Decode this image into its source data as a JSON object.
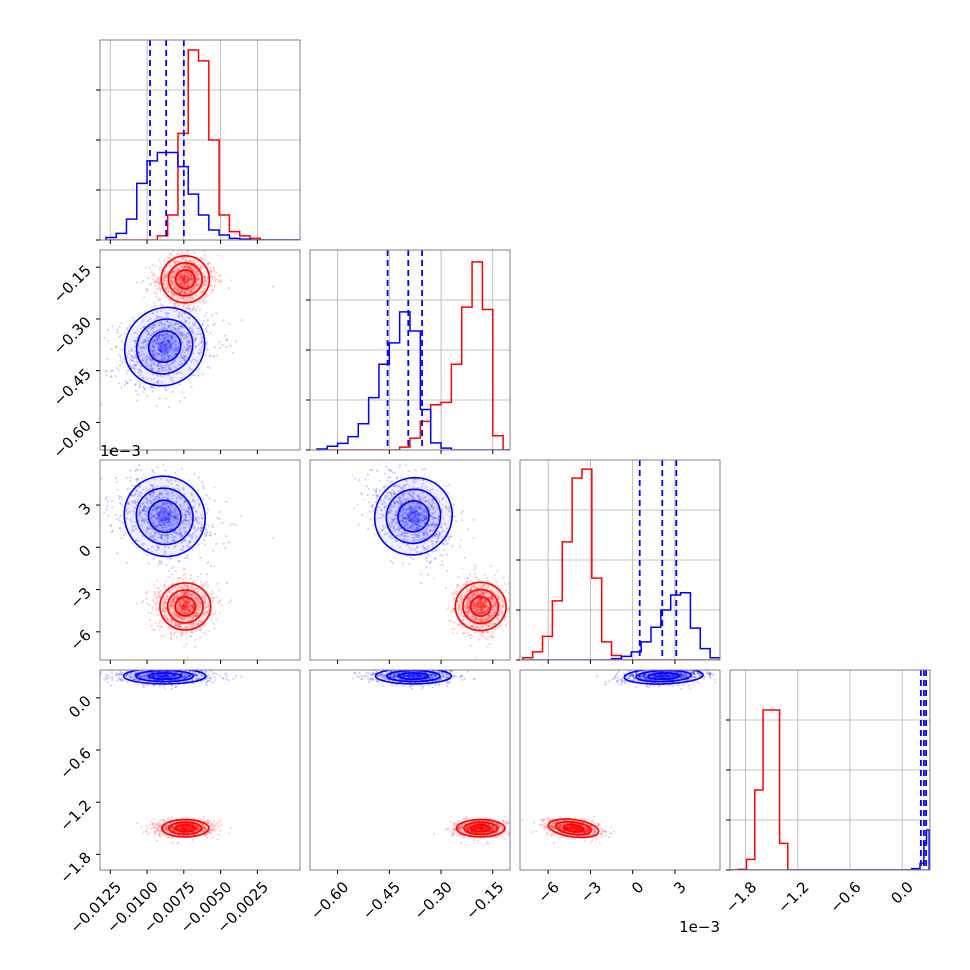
{
  "chart_data": {
    "type": "corner",
    "colors": {
      "blue": "#0000ff",
      "red": "#ff0000",
      "grid": "#b0b0b0",
      "frame": "#808080"
    },
    "grid": true,
    "parameters": [
      {
        "range": [
          -0.0132,
          0.0004
        ],
        "ticks": [
          -0.0125,
          -0.01,
          -0.0075,
          -0.005,
          -0.0025
        ],
        "tick_labels": [
          "−0.0125",
          "−0.0100",
          "−0.0075",
          "−0.0050",
          "−0.0025"
        ],
        "offset": ""
      },
      {
        "range": [
          -0.68,
          -0.1
        ],
        "ticks": [
          -0.6,
          -0.45,
          -0.3,
          -0.15
        ],
        "tick_labels": [
          "−0.60",
          "−0.45",
          "−0.30",
          "−0.15"
        ],
        "offset": ""
      },
      {
        "range": [
          -0.008,
          0.0062
        ],
        "ticks": [
          -0.006,
          -0.003,
          0,
          0.003
        ],
        "tick_labels": [
          "−6",
          "−3",
          "0",
          "3"
        ],
        "offset": "1e−3"
      },
      {
        "range": [
          -1.98,
          0.32
        ],
        "ticks": [
          -1.8,
          -1.2,
          -0.6,
          0.0
        ],
        "tick_labels": [
          "−1.8",
          "−1.2",
          "−0.6",
          "0.0"
        ],
        "offset": ""
      }
    ],
    "histograms": [
      {
        "edges": [
          -0.0128,
          -0.0121,
          -0.0114,
          -0.0107,
          -0.01,
          -0.0093,
          -0.0086,
          -0.0079,
          -0.0072,
          -0.0065,
          -0.0058,
          -0.0051,
          -0.0044,
          -0.0037,
          -0.003,
          -0.0023,
          -0.0016,
          -0.0009,
          -0.0002,
          0.0004
        ],
        "blue": [
          3,
          8,
          25,
          68,
          95,
          105,
          105,
          88,
          55,
          30,
          12,
          6,
          2,
          1,
          0,
          0,
          0,
          0,
          0
        ],
        "red": [
          0,
          0,
          0,
          0,
          0,
          5,
          30,
          128,
          228,
          215,
          120,
          30,
          10,
          5,
          2,
          0,
          0,
          0,
          0
        ],
        "ylim": [
          0,
          240
        ],
        "quantiles_blue": [
          -0.0098,
          -0.0087,
          -0.0075
        ]
      },
      {
        "edges": [
          -0.66,
          -0.63,
          -0.6,
          -0.57,
          -0.54,
          -0.51,
          -0.48,
          -0.45,
          -0.42,
          -0.39,
          -0.36,
          -0.33,
          -0.3,
          -0.27,
          -0.24,
          -0.21,
          -0.18,
          -0.15,
          -0.12,
          -0.1
        ],
        "blue": [
          2,
          8,
          14,
          28,
          55,
          110,
          180,
          225,
          290,
          250,
          85,
          15,
          4,
          0,
          0,
          0,
          0,
          0,
          0
        ],
        "red": [
          0,
          0,
          0,
          0,
          0,
          0,
          0,
          0,
          6,
          25,
          60,
          95,
          100,
          180,
          300,
          395,
          295,
          30,
          0
        ],
        "ylim": [
          0,
          420
        ],
        "quantiles_blue": [
          -0.455,
          -0.395,
          -0.355
        ]
      },
      {
        "edges": [
          -0.0078,
          -0.0071,
          -0.0064,
          -0.0057,
          -0.005,
          -0.0043,
          -0.0036,
          -0.0029,
          -0.0022,
          -0.0015,
          -0.0008,
          -0.0001,
          0.0006,
          0.0013,
          0.002,
          0.0027,
          0.0034,
          0.0041,
          0.0048,
          0.0055,
          0.0062
        ],
        "blue": [
          0,
          0,
          0,
          0,
          0,
          0,
          0,
          0,
          0,
          3,
          8,
          18,
          40,
          72,
          110,
          143,
          148,
          70,
          25,
          5
        ],
        "red": [
          5,
          18,
          52,
          130,
          260,
          400,
          420,
          180,
          40,
          10,
          0,
          0,
          0,
          0,
          0,
          0,
          0,
          0,
          0,
          0
        ],
        "ylim": [
          0,
          440
        ],
        "quantiles_blue": [
          0.0005,
          0.0021,
          0.0031
        ]
      },
      {
        "edges": [
          -1.98,
          -1.885,
          -1.79,
          -1.695,
          -1.6,
          -1.505,
          -1.41,
          -1.315,
          -1.22,
          -1.125,
          -1.03,
          -0.935,
          -0.84,
          -0.745,
          -0.65,
          -0.555,
          -0.46,
          -0.365,
          -0.27,
          -0.175,
          -0.08,
          0.015,
          0.11,
          0.205,
          0.25,
          0.28,
          0.31
        ],
        "blue": [
          0,
          0,
          0,
          0,
          0,
          0,
          0,
          0,
          0,
          0,
          0,
          0,
          0,
          0,
          0,
          0,
          0,
          0,
          0,
          0,
          0,
          0,
          2,
          10,
          40,
          60
        ],
        "red": [
          0,
          1,
          16,
          120,
          240,
          240,
          40,
          0,
          0,
          0,
          0,
          0,
          0,
          0,
          0,
          0,
          0,
          0,
          0,
          0,
          0,
          0,
          0,
          0,
          0,
          0
        ],
        "ylim": [
          0,
          300
        ],
        "quantiles_blue": [
          0.215,
          0.25,
          0.275
        ]
      }
    ],
    "clusters": [
      {
        "color": "blue",
        "center": [
          -0.0088,
          -0.38,
          0.0022,
          0.25
        ],
        "sigma": [
          0.0014,
          0.055,
          0.0014,
          0.045
        ],
        "corr": [
          [
            1,
            0.3,
            -0.25,
            0
          ],
          [
            0.3,
            1,
            -0.4,
            0
          ],
          [
            -0.25,
            -0.4,
            1,
            0.15
          ],
          [
            0,
            0,
            0.15,
            1
          ]
        ]
      },
      {
        "color": "red",
        "center": [
          -0.0074,
          -0.185,
          -0.0042,
          -1.5
        ],
        "sigma": [
          0.0008,
          0.035,
          0.0009,
          0.05
        ],
        "corr": [
          [
            1,
            0,
            0,
            0
          ],
          [
            0,
            1,
            0,
            0
          ],
          [
            0,
            0,
            1,
            -0.35
          ],
          [
            0,
            0,
            -0.35,
            1
          ]
        ]
      }
    ]
  }
}
